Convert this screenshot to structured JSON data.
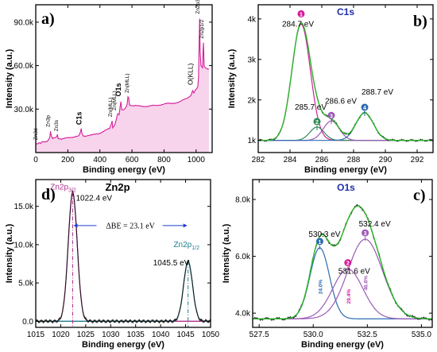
{
  "colors": {
    "data": "#1a1a1a",
    "fill_survey": "#f4c6e6",
    "fit_envelope": "#2eb82e",
    "pink": "#d61f9a",
    "peak_green": "#2e8b57",
    "peak_purple": "#9b59b6",
    "peak_blue": "#2b6cb0",
    "title_blue": "#1f2ea8",
    "zn_magenta": "#b0308f",
    "zn_teal": "#1f7f8f",
    "bracket_blue": "#1f3fd1"
  },
  "chart_data": [
    {
      "panel_label": "a)",
      "type": "line",
      "title": "",
      "xlabel": "Binding energy (eV)",
      "ylabel": "Intensity (a.u.)",
      "xlim": [
        0,
        1100
      ],
      "ylim": [
        0,
        102000
      ],
      "xticks": [
        0,
        200,
        400,
        600,
        800,
        1000
      ],
      "xtick_labels": [
        "0",
        "200",
        "400",
        "600",
        "800",
        "1000"
      ],
      "yticks": [
        30000,
        60000,
        90000
      ],
      "ytick_labels": [
        "30.0k",
        "60.0k",
        "90.0k"
      ],
      "series": [
        {
          "x": [
            0,
            10,
            20,
            30,
            40,
            55,
            70,
            80,
            88,
            92,
            96,
            105,
            130,
            135,
            140,
            160,
            200,
            240,
            270,
            280,
            284,
            288,
            300,
            350,
            400,
            430,
            460,
            470,
            476,
            480,
            490,
            500,
            510,
            520,
            526,
            531,
            536,
            545,
            560,
            570,
            575,
            580,
            585,
            600,
            650,
            700,
            750,
            800,
            850,
            900,
            950,
            970,
            978,
            985,
            1000,
            1010,
            1015,
            1020,
            1022,
            1025,
            1030,
            1040,
            1044,
            1046,
            1050,
            1060,
            1070,
            1080
          ],
          "y": [
            6000,
            6200,
            7000,
            6500,
            7500,
            7000,
            7500,
            9000,
            11000,
            15000,
            12000,
            9500,
            10500,
            12500,
            10000,
            9500,
            10000,
            11000,
            11500,
            14500,
            16500,
            13000,
            11500,
            12000,
            13500,
            15000,
            16500,
            19500,
            22000,
            17500,
            18500,
            21500,
            26500,
            26000,
            31500,
            35500,
            30000,
            29500,
            30500,
            33000,
            38500,
            37500,
            33000,
            32500,
            32000,
            32000,
            32500,
            33500,
            34000,
            35000,
            38000,
            40000,
            43000,
            41000,
            43500,
            45000,
            52000,
            82000,
            92500,
            70000,
            60000,
            58000,
            72000,
            76000,
            60000,
            58500,
            58000,
            57500
          ]
        }
      ],
      "annotations": [
        {
          "text": "Zn3d",
          "x": 10,
          "y": 7000
        },
        {
          "text": "Zn3p",
          "x": 88,
          "y": 16000
        },
        {
          "text": "Zn3s",
          "x": 140,
          "y": 13000
        },
        {
          "text": "C1s",
          "x": 284,
          "y": 17500
        },
        {
          "text": "Zn(MLL)",
          "x": 475,
          "y": 23000
        },
        {
          "text": "Zn(MLL)",
          "x": 500,
          "y": 27500
        },
        {
          "text": "O1s",
          "x": 531,
          "y": 37000
        },
        {
          "text": "Zn(MLL)",
          "x": 580,
          "y": 39500
        },
        {
          "text": "O(KLL)",
          "x": 978,
          "y": 45000
        },
        {
          "text": "Zn2p3/2",
          "x": 1022,
          "y": 94000
        },
        {
          "text": "Zn2p1/2",
          "x": 1045,
          "y": 77000
        }
      ]
    },
    {
      "panel_label": "b)",
      "type": "line",
      "title": "C1s",
      "xlabel": "Binding energy (eV)",
      "ylabel": "Intensity (a.u.)",
      "xlim": [
        282,
        293
      ],
      "ylim": [
        700,
        4350
      ],
      "xticks": [
        282,
        284,
        286,
        288,
        290,
        292
      ],
      "xtick_labels": [
        "282",
        "284",
        "286",
        "288",
        "290",
        "292"
      ],
      "yticks": [
        1000,
        2000,
        3000,
        4000
      ],
      "ytick_labels": [
        "1k",
        "2k",
        "3k",
        "4k"
      ],
      "baseline": 1000,
      "components": [
        {
          "center": 284.7,
          "height": 2870,
          "sigma": 0.58,
          "number": "1",
          "label": "284.7 eV"
        },
        {
          "center": 285.7,
          "height": 330,
          "sigma": 0.45,
          "number": "2",
          "label": "285.7 eV"
        },
        {
          "center": 286.6,
          "height": 480,
          "sigma": 0.5,
          "number": "3",
          "label": "286.6 eV"
        },
        {
          "center": 288.7,
          "height": 680,
          "sigma": 0.55,
          "number": "4",
          "label": "288.7 eV"
        }
      ]
    },
    {
      "panel_label": "c)",
      "type": "line",
      "title": "O1s",
      "xlabel": "Binding energy (eV)",
      "ylabel": "Intensity (a.u.)",
      "xlim": [
        527.2,
        535.5
      ],
      "ylim": [
        3500,
        8700
      ],
      "xticks": [
        527.5,
        530.0,
        532.5,
        535.0
      ],
      "xtick_labels": [
        "527.5",
        "530.0",
        "532.5",
        "535.0"
      ],
      "yticks": [
        4000,
        6000,
        8000
      ],
      "ytick_labels": [
        "4.0k",
        "6.0k",
        "8.0k"
      ],
      "baseline": 3800,
      "components": [
        {
          "center": 530.3,
          "height": 2500,
          "sigma": 0.45,
          "number": "1",
          "label": "530.3 eV",
          "percent": "24.0%"
        },
        {
          "center": 531.6,
          "height": 1750,
          "sigma": 0.7,
          "number": "2",
          "label": "531.6 eV",
          "percent": "29.4%"
        },
        {
          "center": 532.4,
          "height": 2800,
          "sigma": 0.8,
          "number": "3",
          "label": "532.4 eV",
          "percent": "46.6%"
        }
      ]
    },
    {
      "panel_label": "d)",
      "type": "line",
      "title": "Zn2p",
      "xlabel": "Binding energy (eV)",
      "ylabel": "Intensity (a.u.)",
      "xlim": [
        1015,
        1050
      ],
      "ylim": [
        -800,
        18500
      ],
      "xticks": [
        1015,
        1020,
        1025,
        1030,
        1035,
        1040,
        1045,
        1050
      ],
      "xtick_labels": [
        "1015",
        "1020",
        "1025",
        "1030",
        "1035",
        "1040",
        "1045",
        "1050"
      ],
      "yticks": [
        0,
        5000,
        10000,
        15000
      ],
      "ytick_labels": [
        "0.0",
        "5.0k",
        "10.0k",
        "15.0k"
      ],
      "peaks": [
        {
          "center": 1022.4,
          "height": 16800,
          "sigma": 0.9,
          "label": "1022.4 eV",
          "name": "Zn2p",
          "sub": "3/2"
        },
        {
          "center": 1045.5,
          "height": 7800,
          "sigma": 0.9,
          "label": "1045.5 eV",
          "name": "Zn2p",
          "sub": "1/2"
        }
      ],
      "delta_label": "ΔBE = 23.1 eV"
    }
  ]
}
